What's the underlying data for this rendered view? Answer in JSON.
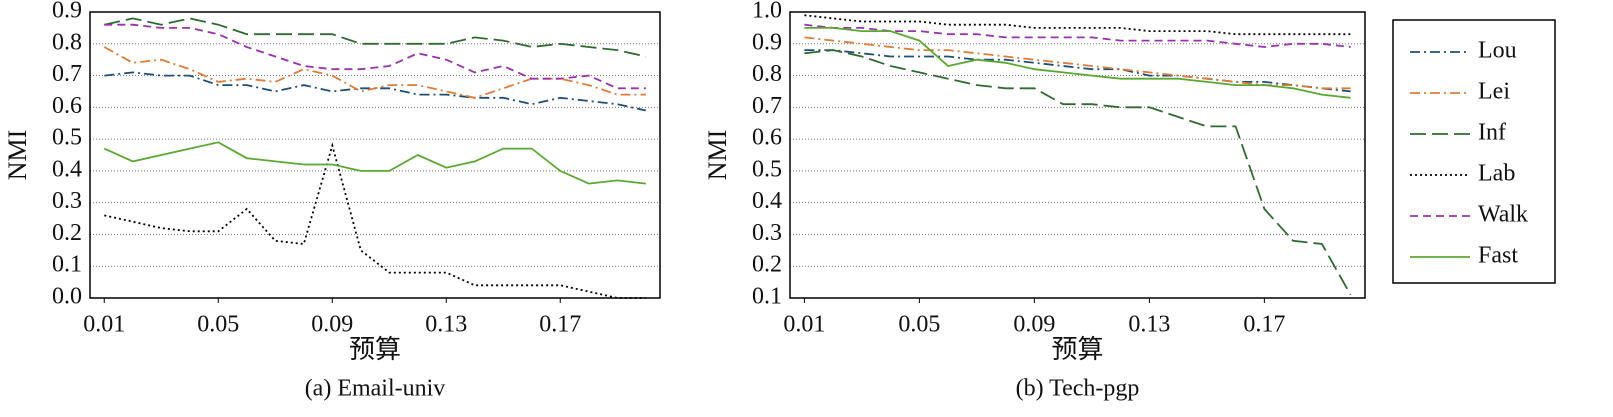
{
  "chart_data": [
    {
      "type": "line",
      "caption": "(a) Email-univ",
      "xlabel": "预算",
      "ylabel": "NMI",
      "x": [
        0.01,
        0.02,
        0.03,
        0.04,
        0.05,
        0.06,
        0.07,
        0.08,
        0.09,
        0.1,
        0.11,
        0.12,
        0.13,
        0.14,
        0.15,
        0.16,
        0.17,
        0.18,
        0.19,
        0.2
      ],
      "xlim": [
        0.005,
        0.205
      ],
      "xticks": [
        0.01,
        0.05,
        0.09,
        0.13,
        0.17
      ],
      "ylim": [
        0,
        0.9
      ],
      "yticks": [
        {
          "value": 0,
          "label": "0.0"
        },
        0.1,
        0.2,
        0.3,
        0.4,
        0.5,
        0.6,
        0.7,
        0.8,
        0.9
      ],
      "grid": true,
      "series": [
        {
          "name": "Lou",
          "color": "#1f4e79",
          "style": "dash-dot",
          "values": [
            0.7,
            0.71,
            0.7,
            0.7,
            0.67,
            0.67,
            0.65,
            0.67,
            0.65,
            0.66,
            0.66,
            0.64,
            0.64,
            0.63,
            0.63,
            0.61,
            0.63,
            0.62,
            0.61,
            0.59
          ]
        },
        {
          "name": "Lei",
          "color": "#e07b39",
          "style": "dash-dot",
          "values": [
            0.79,
            0.74,
            0.75,
            0.72,
            0.68,
            0.69,
            0.68,
            0.72,
            0.7,
            0.65,
            0.67,
            0.67,
            0.65,
            0.63,
            0.66,
            0.69,
            0.69,
            0.67,
            0.64,
            0.64
          ]
        },
        {
          "name": "Inf",
          "color": "#2e6b30",
          "style": "long-dash",
          "values": [
            0.86,
            0.88,
            0.86,
            0.88,
            0.86,
            0.83,
            0.83,
            0.83,
            0.83,
            0.8,
            0.8,
            0.8,
            0.8,
            0.82,
            0.81,
            0.79,
            0.8,
            0.79,
            0.78,
            0.76
          ]
        },
        {
          "name": "Lab",
          "color": "#000000",
          "style": "dotted",
          "values": [
            0.26,
            0.24,
            0.22,
            0.21,
            0.21,
            0.28,
            0.18,
            0.17,
            0.48,
            0.15,
            0.08,
            0.08,
            0.08,
            0.04,
            0.04,
            0.04,
            0.04,
            0.02,
            0.0,
            0.0
          ]
        },
        {
          "name": "Walk",
          "color": "#9b30b0",
          "style": "dash",
          "values": [
            0.86,
            0.86,
            0.85,
            0.85,
            0.83,
            0.79,
            0.76,
            0.73,
            0.72,
            0.72,
            0.73,
            0.77,
            0.75,
            0.71,
            0.73,
            0.69,
            0.69,
            0.7,
            0.66,
            0.66
          ]
        },
        {
          "name": "Fast",
          "color": "#5aa832",
          "style": "solid",
          "values": [
            0.47,
            0.43,
            0.45,
            0.47,
            0.49,
            0.44,
            0.43,
            0.42,
            0.42,
            0.4,
            0.4,
            0.45,
            0.41,
            0.43,
            0.47,
            0.47,
            0.4,
            0.36,
            0.37,
            0.36
          ]
        }
      ]
    },
    {
      "type": "line",
      "caption": "(b) Tech-pgp",
      "xlabel": "预算",
      "ylabel": "NMI",
      "x": [
        0.01,
        0.02,
        0.03,
        0.04,
        0.05,
        0.06,
        0.07,
        0.08,
        0.09,
        0.1,
        0.11,
        0.12,
        0.13,
        0.14,
        0.15,
        0.16,
        0.17,
        0.18,
        0.19,
        0.2
      ],
      "xlim": [
        0.005,
        0.205
      ],
      "xticks": [
        0.01,
        0.05,
        0.09,
        0.13,
        0.17
      ],
      "ylim": [
        0.1,
        1.0
      ],
      "yticks": [
        0.1,
        0.2,
        0.3,
        0.4,
        0.5,
        0.6,
        0.7,
        0.8,
        0.9,
        {
          "value": 1.0,
          "label": "1.0"
        }
      ],
      "grid": true,
      "series": [
        {
          "name": "Lou",
          "color": "#1f4e79",
          "style": "dash-dot",
          "values": [
            0.88,
            0.88,
            0.87,
            0.86,
            0.86,
            0.86,
            0.85,
            0.85,
            0.84,
            0.83,
            0.82,
            0.82,
            0.8,
            0.8,
            0.79,
            0.78,
            0.78,
            0.77,
            0.76,
            0.75
          ]
        },
        {
          "name": "Lei",
          "color": "#e07b39",
          "style": "dash-dot",
          "values": [
            0.92,
            0.91,
            0.9,
            0.89,
            0.88,
            0.88,
            0.87,
            0.86,
            0.85,
            0.84,
            0.83,
            0.82,
            0.81,
            0.8,
            0.79,
            0.78,
            0.77,
            0.77,
            0.76,
            0.76
          ]
        },
        {
          "name": "Inf",
          "color": "#2e6b30",
          "style": "long-dash",
          "values": [
            0.87,
            0.88,
            0.86,
            0.83,
            0.81,
            0.79,
            0.77,
            0.76,
            0.76,
            0.71,
            0.71,
            0.7,
            0.7,
            0.67,
            0.64,
            0.64,
            0.38,
            0.28,
            0.27,
            0.11
          ]
        },
        {
          "name": "Lab",
          "color": "#000000",
          "style": "dotted",
          "values": [
            0.99,
            0.98,
            0.97,
            0.97,
            0.97,
            0.96,
            0.96,
            0.96,
            0.95,
            0.95,
            0.95,
            0.95,
            0.94,
            0.94,
            0.94,
            0.93,
            0.93,
            0.93,
            0.93,
            0.93
          ]
        },
        {
          "name": "Walk",
          "color": "#9b30b0",
          "style": "dash",
          "values": [
            0.96,
            0.95,
            0.95,
            0.94,
            0.94,
            0.93,
            0.93,
            0.92,
            0.92,
            0.92,
            0.92,
            0.91,
            0.91,
            0.91,
            0.91,
            0.9,
            0.89,
            0.9,
            0.9,
            0.89
          ]
        },
        {
          "name": "Fast",
          "color": "#5aa832",
          "style": "solid",
          "values": [
            0.95,
            0.95,
            0.94,
            0.94,
            0.91,
            0.83,
            0.85,
            0.84,
            0.82,
            0.81,
            0.8,
            0.79,
            0.79,
            0.79,
            0.78,
            0.77,
            0.77,
            0.76,
            0.74,
            0.73
          ]
        }
      ]
    }
  ]
}
